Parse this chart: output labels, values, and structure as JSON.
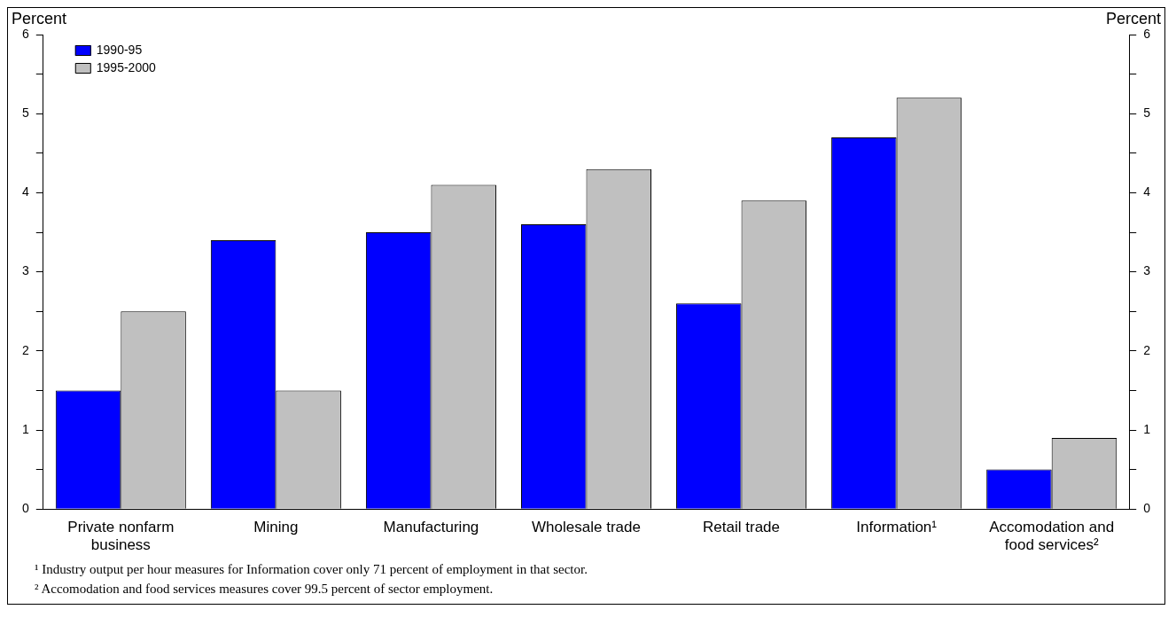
{
  "chart_data": {
    "type": "bar",
    "ylabel": "Percent",
    "y2label": "Percent",
    "categories": [
      "Private nonfarm business",
      "Mining",
      "Manufacturing",
      "Wholesale trade",
      "Retail trade",
      "Information¹",
      "Accomodation and food services²"
    ],
    "series": [
      {
        "name": "1990-95",
        "color": "#0000ff",
        "values": [
          1.5,
          3.4,
          3.5,
          3.6,
          2.6,
          4.7,
          0.5
        ]
      },
      {
        "name": "1995-2000",
        "color": "#c0c0c0",
        "values": [
          2.5,
          1.5,
          4.1,
          4.3,
          3.9,
          5.2,
          0.9
        ]
      }
    ],
    "ylim": [
      0,
      6
    ],
    "yticks": [
      0,
      {
        "value": 0.5,
        "label": null
      },
      1,
      {
        "value": 1.5,
        "label": null
      },
      2,
      {
        "value": 2.5,
        "label": null
      },
      3,
      {
        "value": 3.5,
        "label": null
      },
      4,
      {
        "value": 4.5,
        "label": null
      },
      5,
      {
        "value": 5.5,
        "label": null
      },
      6
    ],
    "y2lim": [
      0,
      6
    ],
    "y2ticks": [
      0,
      {
        "value": 0.5,
        "label": null
      },
      1,
      {
        "value": 1.5,
        "label": null
      },
      2,
      {
        "value": 2.5,
        "label": null
      },
      3,
      {
        "value": 3.5,
        "label": null
      },
      4,
      {
        "value": 4.5,
        "label": null
      },
      5,
      {
        "value": 5.5,
        "label": null
      },
      6
    ],
    "grid": false,
    "legend": "top left",
    "annotations": [
      "¹ Industry output per hour measures for Information cover only 71 percent of employment in that sector.",
      "² Accomodation and food services measures cover 99.5 percent of sector employment."
    ]
  }
}
